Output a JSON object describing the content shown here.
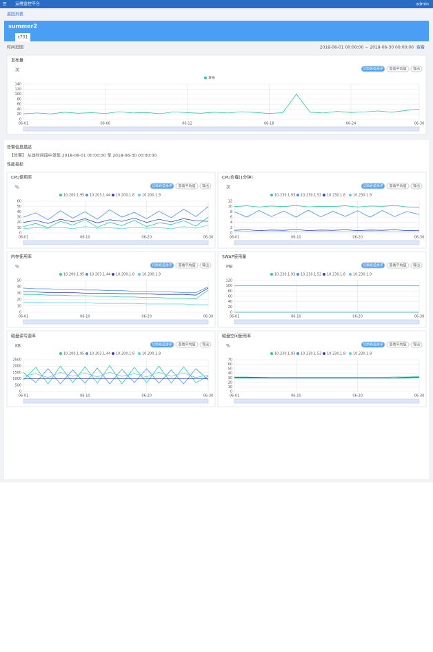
{
  "app": {
    "name": "运维监控平台",
    "user": "admin"
  },
  "nav": {
    "back": "返回列表",
    "host": "summer2",
    "tab": "c701"
  },
  "filter": {
    "label": "时间范围",
    "range": "2018-06-01 00:00:00 ~ 2018-06-30 00:00:00",
    "query": "查看"
  },
  "alert": {
    "title": "告警信息描述",
    "text": "【告警】 从该时间段中发现 2018-06-01 00:00:00 至 2018-06-30 00:00:00.",
    "section": "性能指标"
  },
  "buttons": [
    "切换峰值排序",
    "查看平均值",
    "导出"
  ],
  "chart_data": [
    {
      "type": "line",
      "title": "发布量",
      "y_label": "次",
      "grid": true,
      "ylim": [
        0,
        140
      ],
      "yticks": [
        0,
        20,
        40,
        60,
        80,
        100,
        120,
        140
      ],
      "categories": [
        "06-01",
        null,
        null,
        null,
        null,
        null,
        "06-06",
        null,
        null,
        null,
        null,
        null,
        "06-12",
        null,
        null,
        null,
        null,
        null,
        "06-18",
        null,
        null,
        null,
        null,
        null,
        "06-24",
        null,
        null,
        null,
        null,
        "06-30"
      ],
      "series": [
        {
          "name": "发布",
          "color": "#2ec7a9",
          "values": [
            22,
            25,
            21,
            28,
            24,
            26,
            23,
            30,
            25,
            27,
            22,
            29,
            26,
            24,
            28,
            25,
            30,
            27,
            23,
            26,
            100,
            28,
            25,
            31,
            27,
            29,
            33,
            28,
            35,
            40
          ]
        }
      ]
    },
    {
      "type": "line",
      "title": "CPU使用率",
      "y_label": "%",
      "grid": true,
      "ylim": [
        0,
        60
      ],
      "yticks": [
        0,
        10,
        20,
        30,
        40,
        50,
        60
      ],
      "categories": [
        "06-01",
        null,
        null,
        null,
        null,
        "06-10",
        null,
        null,
        null,
        null,
        "06-20",
        null,
        null,
        null,
        null,
        "06-30"
      ],
      "series": [
        {
          "name": "10.200.1.95",
          "color": "#2ec7a9",
          "values": [
            12,
            18,
            10,
            22,
            15,
            25,
            11,
            20,
            14,
            24,
            12,
            19,
            16,
            23,
            13,
            30
          ]
        },
        {
          "name": "10.203.1.44",
          "color": "#4a8ff0",
          "values": [
            30,
            38,
            25,
            42,
            28,
            40,
            26,
            44,
            30,
            39,
            27,
            41,
            29,
            45,
            31,
            50
          ]
        },
        {
          "name": "10.200.1.8",
          "color": "#3341b8",
          "values": [
            20,
            24,
            18,
            26,
            21,
            27,
            19,
            25,
            22,
            28,
            20,
            26,
            21,
            27,
            23,
            22
          ]
        },
        {
          "name": "10.200.1.9",
          "color": "#5fd0e0",
          "values": [
            8,
            10,
            9,
            11,
            8,
            12,
            9,
            10,
            8,
            11,
            9,
            10,
            8,
            12,
            9,
            15
          ]
        }
      ]
    },
    {
      "type": "line",
      "title": "CPU负载(1分钟)",
      "y_label": "次",
      "grid": true,
      "ylim": [
        0,
        12
      ],
      "yticks": [
        0,
        2,
        4,
        6,
        8,
        10,
        12
      ],
      "categories": [
        "06-01",
        null,
        null,
        null,
        null,
        "06-10",
        null,
        null,
        null,
        null,
        "06-20",
        null,
        null,
        null,
        null,
        "06-30"
      ],
      "series": [
        {
          "name": "10.230.1.93",
          "color": "#2ec7a9",
          "values": [
            10,
            10.3,
            9.8,
            10.2,
            10,
            10.4,
            9.9,
            10.1,
            10,
            10.3,
            9.8,
            10.2,
            10.1,
            10.4,
            9.9,
            9.5
          ]
        },
        {
          "name": "10.230.1.52",
          "color": "#4a8ff0",
          "values": [
            8,
            6,
            8.5,
            6.2,
            8.3,
            6,
            8.6,
            6.1,
            8.2,
            6.3,
            8.4,
            6,
            8.5,
            6.2,
            8.1,
            7
          ]
        },
        {
          "name": "10.230.1.8",
          "color": "#3341b8",
          "values": [
            1,
            1.2,
            0.9,
            1.1,
            1,
            1.3,
            0.9,
            1.1,
            1,
            1.2,
            0.9,
            1.1,
            1,
            1.2,
            0.9,
            1
          ]
        },
        {
          "name": "10.230.1.9",
          "color": "#5fd0e0",
          "values": [
            0.5,
            0.6,
            0.4,
            0.5,
            0.6,
            0.5,
            0.4,
            0.6,
            0.5,
            0.5,
            0.4,
            0.6,
            0.5,
            0.5,
            0.4,
            0.5
          ]
        }
      ]
    },
    {
      "type": "line",
      "title": "内存使用率",
      "y_label": "%",
      "grid": true,
      "ylim": [
        0,
        50
      ],
      "yticks": [
        0,
        10,
        20,
        30,
        40,
        50
      ],
      "categories": [
        "06-01",
        null,
        null,
        null,
        null,
        "06-10",
        null,
        null,
        null,
        null,
        "06-20",
        null,
        null,
        null,
        null,
        "06-30"
      ],
      "series": [
        {
          "name": "10.200.1.95",
          "color": "#2ec7a9",
          "values": [
            28,
            28,
            27,
            27,
            26,
            26,
            25,
            25,
            24,
            24,
            23,
            23,
            22,
            22,
            21,
            35
          ]
        },
        {
          "name": "10.203.1.44",
          "color": "#4a8ff0",
          "values": [
            38,
            37,
            37,
            36,
            36,
            35,
            35,
            34,
            34,
            33,
            33,
            32,
            32,
            31,
            31,
            40
          ]
        },
        {
          "name": "10.200.1.8",
          "color": "#3341b8",
          "values": [
            32,
            32,
            31,
            31,
            31,
            30,
            30,
            30,
            29,
            29,
            29,
            28,
            28,
            28,
            27,
            38
          ]
        },
        {
          "name": "10.200.1.9",
          "color": "#5fd0e0",
          "values": [
            16,
            16,
            15,
            15,
            15,
            15,
            14,
            14,
            14,
            14,
            13,
            13,
            13,
            13,
            12,
            12
          ]
        }
      ]
    },
    {
      "type": "line",
      "title": "SWAP使用量",
      "y_label": "MB",
      "grid": true,
      "ylim": [
        0,
        120
      ],
      "yticks": [
        0,
        20,
        40,
        60,
        80,
        100,
        120
      ],
      "categories": [
        "06-01",
        null,
        null,
        null,
        null,
        "06-10",
        null,
        null,
        null,
        null,
        "06-20",
        null,
        null,
        null,
        null,
        "06-30"
      ],
      "series": [
        {
          "name": "10.230.1.93",
          "color": "#2ec7a9",
          "values": [
            100,
            100,
            100,
            100,
            100,
            100,
            100,
            100,
            100,
            100,
            100,
            100,
            100,
            100,
            100,
            100
          ]
        },
        {
          "name": "10.230.1.52",
          "color": "#4a8ff0",
          "values": [
            0,
            0,
            0,
            0,
            0,
            0,
            0,
            0,
            0,
            0,
            0,
            0,
            0,
            0,
            0,
            0
          ]
        },
        {
          "name": "10.230.1.8",
          "color": "#3341b8",
          "values": [
            0,
            0,
            0,
            0,
            0,
            0,
            0,
            0,
            0,
            0,
            0,
            0,
            0,
            0,
            0,
            0
          ]
        },
        {
          "name": "10.230.1.9",
          "color": "#5fd0e0",
          "values": [
            0,
            0,
            0,
            0,
            0,
            0,
            0,
            0,
            0,
            0,
            0,
            0,
            0,
            0,
            0,
            0
          ]
        }
      ]
    },
    {
      "type": "line",
      "title": "磁盘读写速率",
      "y_label": "KB",
      "grid": true,
      "ylim": [
        0,
        2500
      ],
      "yticks": [
        0,
        500,
        1000,
        1500,
        2000,
        2500
      ],
      "categories": [
        "06-01",
        null,
        null,
        null,
        null,
        "06-10",
        null,
        null,
        null,
        null,
        "06-20",
        null,
        null,
        null,
        null,
        "06-30"
      ],
      "series": [
        {
          "name": "10.200.1.95",
          "color": "#2ec7a9",
          "values": [
            900,
            1900,
            600,
            2000,
            700,
            1950,
            650,
            2050,
            600,
            1900,
            700,
            2000,
            650,
            1950,
            700,
            1200
          ]
        },
        {
          "name": "10.203.1.44",
          "color": "#4a8ff0",
          "values": [
            1500,
            700,
            1800,
            600,
            1700,
            650,
            1850,
            600,
            1750,
            700,
            1800,
            650,
            1700,
            600,
            1800,
            900
          ]
        },
        {
          "name": "10.200.1.8",
          "color": "#3341b8",
          "values": [
            1000,
            1000,
            1000,
            1000,
            1000,
            1000,
            1000,
            1000,
            1000,
            1000,
            1000,
            1000,
            1000,
            1000,
            1000,
            1000
          ]
        },
        {
          "name": "10.200.1.9",
          "color": "#5fd0e0",
          "values": [
            1200,
            1400,
            1100,
            1500,
            1200,
            1450,
            1150,
            1500,
            1200,
            1400,
            1150,
            1500,
            1200,
            1450,
            1100,
            1300
          ]
        }
      ]
    },
    {
      "type": "line",
      "title": "磁盘空间使用率",
      "y_label": "%",
      "grid": true,
      "ylim": [
        0,
        70
      ],
      "yticks": [
        0,
        10,
        20,
        30,
        40,
        50,
        60,
        70
      ],
      "categories": [
        "06-01",
        null,
        null,
        null,
        null,
        "06-10",
        null,
        null,
        null,
        null,
        "06-20",
        null,
        null,
        null,
        null,
        "06-30"
      ],
      "series": [
        {
          "name": "10.230.1.93",
          "color": "#2ec7a9",
          "values": [
            32,
            32,
            31,
            31,
            31,
            31,
            31,
            31,
            31,
            31,
            31,
            31,
            31,
            32,
            32,
            33
          ]
        },
        {
          "name": "10.230.1.52",
          "color": "#4a8ff0",
          "values": [
            30,
            30,
            30,
            30,
            30,
            30,
            30,
            30,
            30,
            30,
            30,
            30,
            30,
            30,
            30,
            31
          ]
        },
        {
          "name": "10.230.1.8",
          "color": "#3341b8",
          "values": [
            31,
            31,
            31,
            30,
            30,
            30,
            30,
            30,
            30,
            30,
            30,
            30,
            30,
            30,
            31,
            31
          ]
        },
        {
          "name": "10.230.1.9",
          "color": "#5fd0e0",
          "values": [
            29,
            29,
            29,
            29,
            29,
            29,
            29,
            29,
            29,
            29,
            29,
            29,
            29,
            29,
            29,
            30
          ]
        }
      ]
    }
  ]
}
